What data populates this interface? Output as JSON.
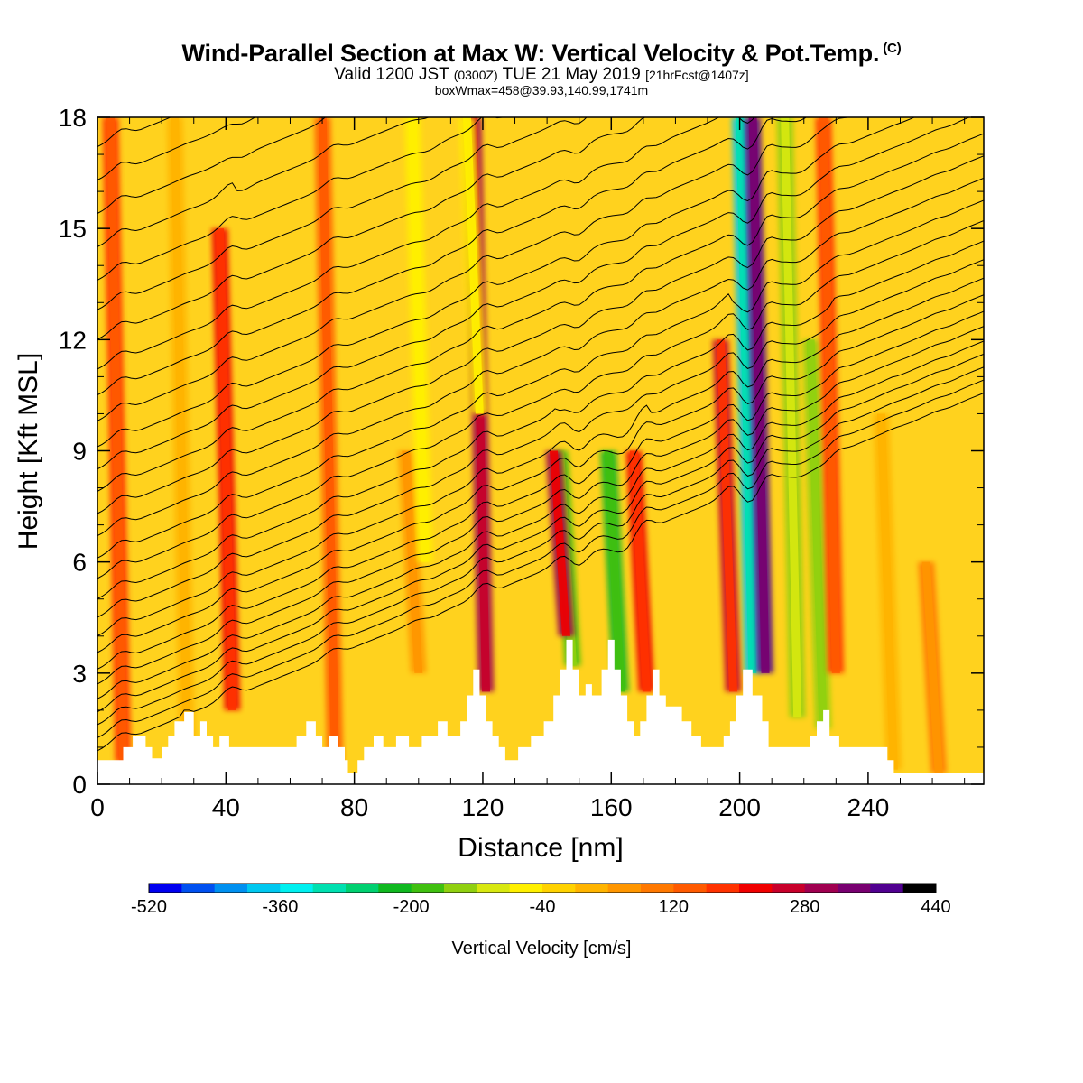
{
  "title": {
    "main": "Wind-Parallel Section at Max W: Vertical Velocity & Pot.Temp.",
    "copyright": "(C)",
    "valid_prefix": "Valid 1200 JST",
    "valid_utc": "(0300Z)",
    "valid_date": "TUE 21 May 2019",
    "forecast": "[21hrFcst@1407z]",
    "boxinfo": "boxWmax=458@39.93,140.99,1741m"
  },
  "colors": {
    "background": "#FFD21E",
    "terrain": "#FFFFFF",
    "contour": "#000000",
    "colorbar": [
      "#0000F0",
      "#0050F0",
      "#0090F0",
      "#00C8F0",
      "#00F0F0",
      "#00E0B0",
      "#00D070",
      "#10B820",
      "#40C010",
      "#90D010",
      "#D8E810",
      "#FFF000",
      "#FFD200",
      "#FFB400",
      "#FF9600",
      "#FF7800",
      "#FF5A00",
      "#FF3200",
      "#F00000",
      "#C8002A",
      "#A00050",
      "#780070",
      "#500090"
    ]
  },
  "chart_data": {
    "type": "heatmap",
    "xlabel": "Distance [nm]",
    "ylabel": "Height [Kft MSL]",
    "xlim": [
      0,
      276
    ],
    "ylim": [
      0,
      18
    ],
    "xticks": [
      0,
      40,
      80,
      120,
      160,
      200,
      240
    ],
    "yticks": [
      0,
      3,
      6,
      9,
      12,
      15,
      18
    ],
    "colorbar": {
      "label": "Vertical Velocity [cm/s]",
      "min": -520,
      "max": 440,
      "step": 40,
      "tick_values": [
        -520,
        -360,
        -200,
        -40,
        120,
        280,
        440
      ]
    },
    "terrain_profile": [
      [
        0,
        0.65
      ],
      [
        8,
        0.65
      ],
      [
        8,
        1.0
      ],
      [
        11,
        1.0
      ],
      [
        11,
        1.3
      ],
      [
        15,
        1.3
      ],
      [
        15,
        1.0
      ],
      [
        17,
        1.0
      ],
      [
        17,
        0.7
      ],
      [
        20,
        0.7
      ],
      [
        20,
        1.0
      ],
      [
        22,
        1.0
      ],
      [
        22,
        1.3
      ],
      [
        24,
        1.3
      ],
      [
        24,
        1.7
      ],
      [
        27,
        1.7
      ],
      [
        27,
        1.95
      ],
      [
        30,
        1.95
      ],
      [
        30,
        1.3
      ],
      [
        32,
        1.3
      ],
      [
        32,
        1.7
      ],
      [
        34,
        1.7
      ],
      [
        34,
        1.3
      ],
      [
        36,
        1.3
      ],
      [
        36,
        1.0
      ],
      [
        38,
        1.0
      ],
      [
        38,
        1.3
      ],
      [
        41,
        1.3
      ],
      [
        41,
        1.0
      ],
      [
        62,
        1.0
      ],
      [
        62,
        1.3
      ],
      [
        65,
        1.3
      ],
      [
        65,
        1.7
      ],
      [
        68,
        1.7
      ],
      [
        68,
        1.3
      ],
      [
        70,
        1.3
      ],
      [
        70,
        1.0
      ],
      [
        72,
        1.0
      ],
      [
        72,
        1.3
      ],
      [
        75,
        1.3
      ],
      [
        75,
        1.0
      ],
      [
        77,
        1.0
      ],
      [
        77,
        0.65
      ],
      [
        78,
        0.65
      ],
      [
        78,
        0.3
      ],
      [
        81,
        0.3
      ],
      [
        81,
        0.65
      ],
      [
        83,
        0.65
      ],
      [
        83,
        1.0
      ],
      [
        86,
        1.0
      ],
      [
        86,
        1.3
      ],
      [
        89,
        1.3
      ],
      [
        89,
        1.0
      ],
      [
        93,
        1.0
      ],
      [
        93,
        1.3
      ],
      [
        97,
        1.3
      ],
      [
        97,
        1.0
      ],
      [
        101,
        1.0
      ],
      [
        101,
        1.3
      ],
      [
        106,
        1.3
      ],
      [
        106,
        1.7
      ],
      [
        109,
        1.7
      ],
      [
        109,
        1.3
      ],
      [
        113,
        1.3
      ],
      [
        113,
        1.7
      ],
      [
        115,
        1.7
      ],
      [
        115,
        2.4
      ],
      [
        117,
        2.4
      ],
      [
        117,
        3.1
      ],
      [
        119,
        3.1
      ],
      [
        119,
        2.4
      ],
      [
        121,
        2.4
      ],
      [
        121,
        1.7
      ],
      [
        123,
        1.7
      ],
      [
        123,
        1.3
      ],
      [
        125,
        1.3
      ],
      [
        125,
        1.0
      ],
      [
        127,
        1.0
      ],
      [
        127,
        0.65
      ],
      [
        131,
        0.65
      ],
      [
        131,
        1.0
      ],
      [
        135,
        1.0
      ],
      [
        135,
        1.3
      ],
      [
        139,
        1.3
      ],
      [
        139,
        1.7
      ],
      [
        142,
        1.7
      ],
      [
        142,
        2.4
      ],
      [
        144,
        2.4
      ],
      [
        144,
        3.1
      ],
      [
        146,
        3.1
      ],
      [
        146,
        3.9
      ],
      [
        148,
        3.9
      ],
      [
        148,
        3.1
      ],
      [
        150,
        3.1
      ],
      [
        150,
        2.4
      ],
      [
        152,
        2.4
      ],
      [
        152,
        2.7
      ],
      [
        154,
        2.7
      ],
      [
        154,
        2.4
      ],
      [
        157,
        2.4
      ],
      [
        157,
        3.1
      ],
      [
        159,
        3.1
      ],
      [
        159,
        3.9
      ],
      [
        161,
        3.9
      ],
      [
        161,
        3.1
      ],
      [
        163,
        3.1
      ],
      [
        163,
        2.4
      ],
      [
        165,
        2.4
      ],
      [
        165,
        1.7
      ],
      [
        167,
        1.7
      ],
      [
        167,
        1.3
      ],
      [
        169,
        1.3
      ],
      [
        169,
        1.7
      ],
      [
        171,
        1.7
      ],
      [
        171,
        2.4
      ],
      [
        173,
        2.4
      ],
      [
        173,
        3.1
      ],
      [
        175,
        3.1
      ],
      [
        175,
        2.4
      ],
      [
        177,
        2.4
      ],
      [
        177,
        2.1
      ],
      [
        182,
        2.1
      ],
      [
        182,
        1.7
      ],
      [
        185,
        1.7
      ],
      [
        185,
        1.3
      ],
      [
        188,
        1.3
      ],
      [
        188,
        1.0
      ],
      [
        195,
        1.0
      ],
      [
        195,
        1.3
      ],
      [
        197,
        1.3
      ],
      [
        197,
        1.7
      ],
      [
        199,
        1.7
      ],
      [
        199,
        2.4
      ],
      [
        201,
        2.4
      ],
      [
        201,
        3.1
      ],
      [
        204,
        3.1
      ],
      [
        204,
        2.4
      ],
      [
        207,
        2.4
      ],
      [
        207,
        1.7
      ],
      [
        209,
        1.7
      ],
      [
        209,
        1.0
      ],
      [
        222,
        1.0
      ],
      [
        222,
        1.3
      ],
      [
        224,
        1.3
      ],
      [
        224,
        1.7
      ],
      [
        226,
        1.7
      ],
      [
        226,
        2.0
      ],
      [
        228,
        2.0
      ],
      [
        228,
        1.3
      ],
      [
        231,
        1.3
      ],
      [
        231,
        1.0
      ],
      [
        246,
        1.0
      ],
      [
        246,
        0.65
      ],
      [
        248,
        0.65
      ],
      [
        248,
        0.3
      ],
      [
        276,
        0.3
      ]
    ],
    "w_features": [
      {
        "x": 8,
        "y_min": 0.6,
        "y_max": 18,
        "w": 180
      },
      {
        "x": 28,
        "y_min": 0.6,
        "y_max": 18,
        "w": 20
      },
      {
        "x": 42,
        "y_min": 2.0,
        "y_max": 15,
        "w": 220
      },
      {
        "x": 74,
        "y_min": 0.6,
        "y_max": 18,
        "w": 150
      },
      {
        "x": 100,
        "y_min": 3.0,
        "y_max": 9,
        "w": 60
      },
      {
        "x": 102,
        "y_min": 6.0,
        "y_max": 18,
        "w": -60
      },
      {
        "x": 121,
        "y_min": 2.5,
        "y_max": 18,
        "w": 300
      },
      {
        "x": 119,
        "y_min": 10.0,
        "y_max": 18,
        "w": -80
      },
      {
        "x": 148,
        "y_min": 3.2,
        "y_max": 9,
        "w": -180
      },
      {
        "x": 146,
        "y_min": 4.0,
        "y_max": 9,
        "w": 280
      },
      {
        "x": 163,
        "y_min": 2.5,
        "y_max": 9,
        "w": -220
      },
      {
        "x": 171,
        "y_min": 2.5,
        "y_max": 9,
        "w": 220
      },
      {
        "x": 198,
        "y_min": 2.5,
        "y_max": 12,
        "w": 240
      },
      {
        "x": 204,
        "y_min": 3.0,
        "y_max": 18,
        "w": -380
      },
      {
        "x": 208,
        "y_min": 3.0,
        "y_max": 18,
        "w": 400
      },
      {
        "x": 218,
        "y_min": 1.8,
        "y_max": 18,
        "w": -150
      },
      {
        "x": 226,
        "y_min": 1.5,
        "y_max": 12,
        "w": -160
      },
      {
        "x": 230,
        "y_min": 3.0,
        "y_max": 18,
        "w": 160
      },
      {
        "x": 248,
        "y_min": 0.4,
        "y_max": 10,
        "w": 20
      },
      {
        "x": 262,
        "y_min": 0.3,
        "y_max": 6,
        "w": 80
      }
    ],
    "theta_contours": {
      "count": 28,
      "base_heights_kft": [
        0.9,
        1.25,
        1.6,
        1.95,
        2.3,
        2.7,
        3.1,
        3.55,
        4.0,
        4.5,
        5.0,
        5.55,
        6.1,
        6.7,
        7.3,
        7.9,
        8.5,
        9.1,
        9.8,
        10.5,
        11.2,
        12.0,
        12.8,
        13.6,
        14.5,
        15.4,
        16.3,
        17.2
      ]
    }
  }
}
